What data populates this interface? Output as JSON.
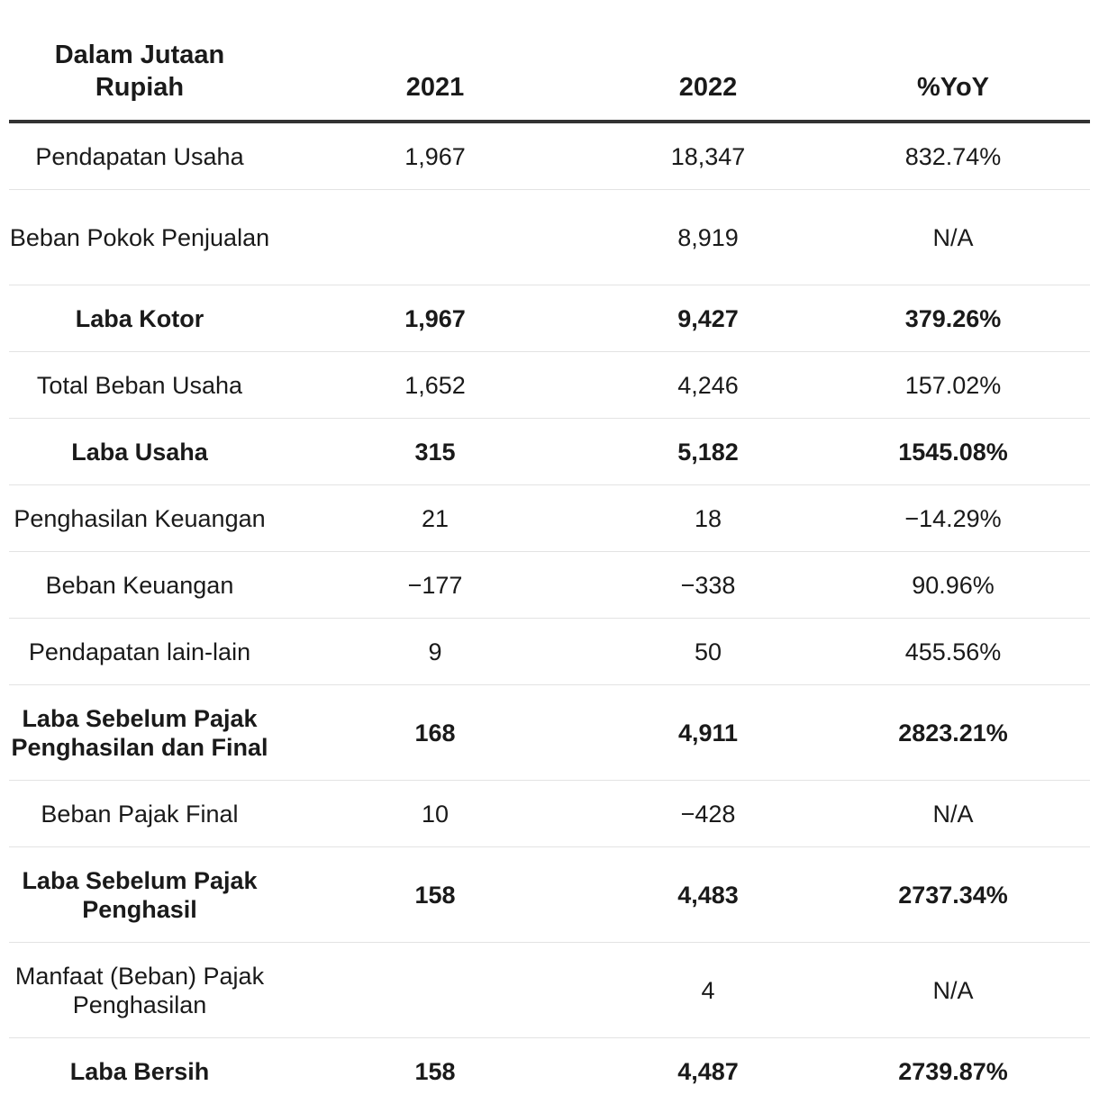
{
  "header": {
    "label": "Dalam Jutaan Rupiah",
    "col_2021": "2021",
    "col_2022": "2022",
    "col_yoy": "%YoY"
  },
  "rows": [
    {
      "label": "Pendapatan Usaha",
      "v2021": "1,967",
      "v2022": "18,347",
      "yoy": "832.74%",
      "bold": false
    },
    {
      "label": "Beban Pokok Penjualan",
      "v2021": "",
      "v2022": "8,919",
      "yoy": "N/A",
      "bold": false
    },
    {
      "label": "Laba Kotor",
      "v2021": "1,967",
      "v2022": "9,427",
      "yoy": "379.26%",
      "bold": true
    },
    {
      "label": "Total Beban Usaha",
      "v2021": "1,652",
      "v2022": "4,246",
      "yoy": "157.02%",
      "bold": false
    },
    {
      "label": "Laba Usaha",
      "v2021": "315",
      "v2022": "5,182",
      "yoy": "1545.08%",
      "bold": true
    },
    {
      "label": "Penghasilan Keuangan",
      "v2021": "21",
      "v2022": "18",
      "yoy": "−14.29%",
      "bold": false
    },
    {
      "label": "Beban Keuangan",
      "v2021": "−177",
      "v2022": "−338",
      "yoy": "90.96%",
      "bold": false
    },
    {
      "label": "Pendapatan lain-lain",
      "v2021": "9",
      "v2022": "50",
      "yoy": "455.56%",
      "bold": false
    },
    {
      "label": "Laba Sebelum Pajak Penghasilan dan Final",
      "v2021": "168",
      "v2022": "4,911",
      "yoy": "2823.21%",
      "bold": true
    },
    {
      "label": "Beban Pajak Final",
      "v2021": "10",
      "v2022": "−428",
      "yoy": "N/A",
      "bold": false
    },
    {
      "label": "Laba Sebelum Pajak Penghasil",
      "v2021": "158",
      "v2022": "4,483",
      "yoy": "2737.34%",
      "bold": true
    },
    {
      "label": "Manfaat (Beban) Pajak Penghasilan",
      "v2021": "",
      "v2022": "4",
      "yoy": "N/A",
      "bold": false
    },
    {
      "label": "Laba Bersih",
      "v2021": "158",
      "v2022": "4,487",
      "yoy": "2739.87%",
      "bold": true
    }
  ]
}
